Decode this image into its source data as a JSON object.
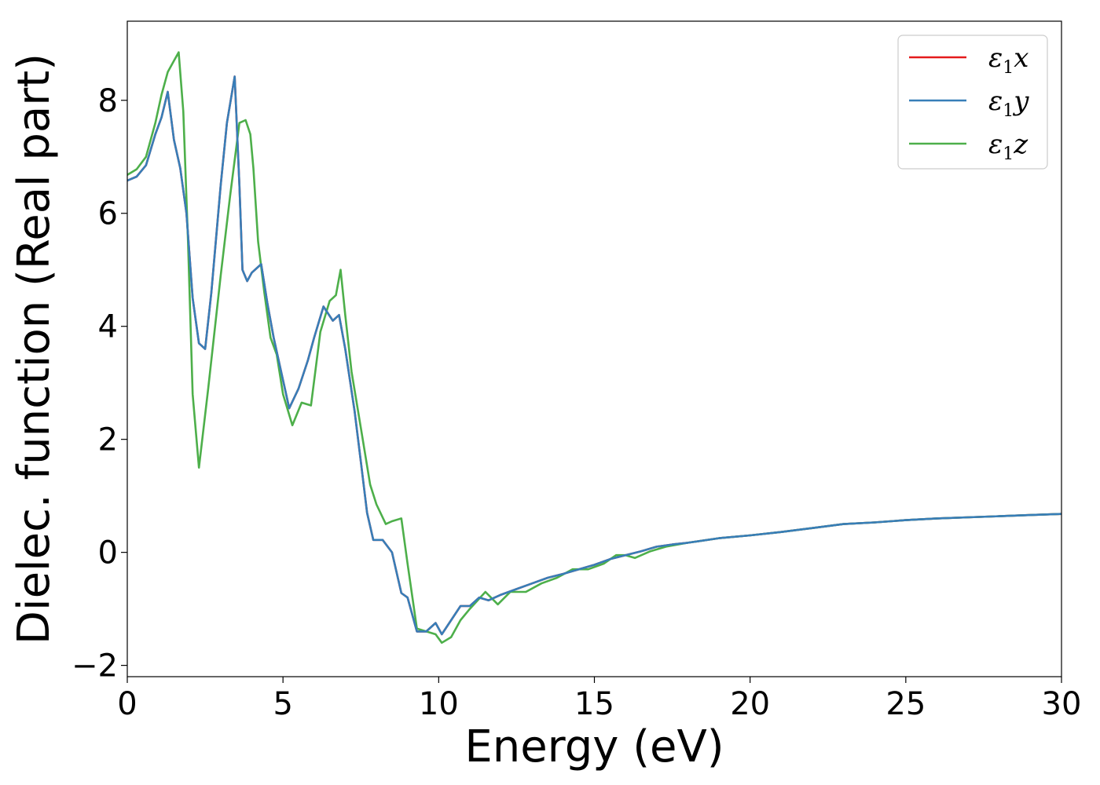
{
  "chart_data": {
    "type": "line",
    "title": "",
    "xlabel": "Energy (eV)",
    "ylabel": "Dielec. function (Real part)",
    "xlim": [
      0,
      30
    ],
    "ylim": [
      -2.2,
      9.4
    ],
    "xticks": [
      0,
      5,
      10,
      15,
      20,
      25,
      30
    ],
    "xtick_labels": [
      "0",
      "5",
      "10",
      "15",
      "20",
      "25",
      "30"
    ],
    "yticks": [
      -2,
      0,
      2,
      4,
      6,
      8
    ],
    "ytick_labels": [
      "−2",
      "0",
      "2",
      "4",
      "6",
      "8"
    ],
    "grid": false,
    "legend_position": "top-right",
    "series": [
      {
        "name": "ε1x",
        "label_main": "ε",
        "label_sub": "1",
        "label_suffix": "x",
        "color": "#e41a1c",
        "x": [
          0,
          0.3,
          0.6,
          0.9,
          1.1,
          1.3,
          1.5,
          1.7,
          1.9,
          2.1,
          2.3,
          2.5,
          2.7,
          3.0,
          3.2,
          3.45,
          3.6,
          3.7,
          3.85,
          4.0,
          4.3,
          4.5,
          4.7,
          4.9,
          5.2,
          5.5,
          5.8,
          6.0,
          6.3,
          6.6,
          6.8,
          7.0,
          7.3,
          7.5,
          7.7,
          7.9,
          8.2,
          8.5,
          8.8,
          9.0,
          9.3,
          9.6,
          9.9,
          10.1,
          10.4,
          10.7,
          11.0,
          11.3,
          11.6,
          12.0,
          12.5,
          13.0,
          13.5,
          14.0,
          14.5,
          15.0,
          15.5,
          16.0,
          16.5,
          17.0,
          17.5,
          18.0,
          19.0,
          20.0,
          21.0,
          22.0,
          23.0,
          24.0,
          25.0,
          26.0,
          27.0,
          28.0,
          29.0,
          30.0
        ],
        "y": [
          6.58,
          6.65,
          6.85,
          7.4,
          7.7,
          8.15,
          7.3,
          6.8,
          6.0,
          4.5,
          3.7,
          3.6,
          4.6,
          6.5,
          7.6,
          8.42,
          6.5,
          5.0,
          4.8,
          4.95,
          5.1,
          4.4,
          3.8,
          3.3,
          2.55,
          2.9,
          3.4,
          3.8,
          4.35,
          4.1,
          4.2,
          3.6,
          2.5,
          1.6,
          0.7,
          0.22,
          0.22,
          0.0,
          -0.72,
          -0.8,
          -1.4,
          -1.4,
          -1.25,
          -1.45,
          -1.2,
          -0.95,
          -0.95,
          -0.8,
          -0.85,
          -0.75,
          -0.65,
          -0.55,
          -0.45,
          -0.38,
          -0.3,
          -0.22,
          -0.12,
          -0.05,
          0.02,
          0.1,
          0.14,
          0.17,
          0.25,
          0.3,
          0.36,
          0.43,
          0.5,
          0.53,
          0.57,
          0.6,
          0.62,
          0.64,
          0.66,
          0.68
        ]
      },
      {
        "name": "ε1y",
        "label_main": "ε",
        "label_sub": "1",
        "label_suffix": "y",
        "color": "#377eb8",
        "x": [
          0,
          0.3,
          0.6,
          0.9,
          1.1,
          1.3,
          1.5,
          1.7,
          1.9,
          2.1,
          2.3,
          2.5,
          2.7,
          3.0,
          3.2,
          3.45,
          3.6,
          3.7,
          3.85,
          4.0,
          4.3,
          4.5,
          4.7,
          4.9,
          5.2,
          5.5,
          5.8,
          6.0,
          6.3,
          6.6,
          6.8,
          7.0,
          7.3,
          7.5,
          7.7,
          7.9,
          8.2,
          8.5,
          8.8,
          9.0,
          9.3,
          9.6,
          9.9,
          10.1,
          10.4,
          10.7,
          11.0,
          11.3,
          11.6,
          12.0,
          12.5,
          13.0,
          13.5,
          14.0,
          14.5,
          15.0,
          15.5,
          16.0,
          16.5,
          17.0,
          17.5,
          18.0,
          19.0,
          20.0,
          21.0,
          22.0,
          23.0,
          24.0,
          25.0,
          26.0,
          27.0,
          28.0,
          29.0,
          30.0
        ],
        "y": [
          6.58,
          6.65,
          6.85,
          7.4,
          7.7,
          8.15,
          7.3,
          6.8,
          6.0,
          4.5,
          3.7,
          3.6,
          4.6,
          6.5,
          7.6,
          8.42,
          6.5,
          5.0,
          4.8,
          4.95,
          5.1,
          4.4,
          3.8,
          3.3,
          2.55,
          2.9,
          3.4,
          3.8,
          4.35,
          4.1,
          4.2,
          3.6,
          2.5,
          1.6,
          0.7,
          0.22,
          0.22,
          0.0,
          -0.72,
          -0.8,
          -1.4,
          -1.4,
          -1.25,
          -1.45,
          -1.2,
          -0.95,
          -0.95,
          -0.8,
          -0.85,
          -0.75,
          -0.65,
          -0.55,
          -0.45,
          -0.38,
          -0.3,
          -0.22,
          -0.12,
          -0.05,
          0.02,
          0.1,
          0.14,
          0.17,
          0.25,
          0.3,
          0.36,
          0.43,
          0.5,
          0.53,
          0.57,
          0.6,
          0.62,
          0.64,
          0.66,
          0.68
        ]
      },
      {
        "name": "ε1z",
        "label_main": "ε",
        "label_sub": "1",
        "label_suffix": "z",
        "color": "#4daf4a",
        "x": [
          0,
          0.3,
          0.6,
          0.9,
          1.1,
          1.3,
          1.5,
          1.65,
          1.8,
          1.95,
          2.1,
          2.3,
          2.6,
          3.0,
          3.3,
          3.6,
          3.8,
          3.95,
          4.05,
          4.2,
          4.4,
          4.6,
          4.8,
          5.0,
          5.3,
          5.6,
          5.9,
          6.2,
          6.5,
          6.7,
          6.85,
          7.0,
          7.2,
          7.5,
          7.8,
          8.0,
          8.3,
          8.5,
          8.8,
          9.0,
          9.3,
          9.6,
          9.9,
          10.1,
          10.4,
          10.7,
          11.0,
          11.5,
          11.9,
          12.3,
          12.8,
          13.3,
          13.8,
          14.3,
          14.8,
          15.3,
          15.7,
          16.0,
          16.3,
          16.8,
          17.3,
          18.0,
          19.0,
          20.0,
          21.0,
          22.0,
          23.0,
          24.0,
          25.0,
          26.0,
          27.0,
          28.0,
          29.0,
          30.0
        ],
        "y": [
          6.68,
          6.78,
          7.0,
          7.6,
          8.1,
          8.5,
          8.7,
          8.85,
          7.8,
          5.5,
          2.8,
          1.5,
          2.9,
          4.9,
          6.3,
          7.6,
          7.65,
          7.4,
          6.8,
          5.5,
          4.6,
          3.8,
          3.5,
          2.8,
          2.25,
          2.65,
          2.6,
          3.9,
          4.45,
          4.55,
          5.0,
          4.2,
          3.2,
          2.2,
          1.2,
          0.85,
          0.5,
          0.55,
          0.6,
          -0.2,
          -1.35,
          -1.4,
          -1.45,
          -1.6,
          -1.5,
          -1.2,
          -1.0,
          -0.7,
          -0.92,
          -0.7,
          -0.7,
          -0.55,
          -0.45,
          -0.3,
          -0.3,
          -0.2,
          -0.05,
          -0.05,
          -0.1,
          0.02,
          0.1,
          0.17,
          0.25,
          0.3,
          0.36,
          0.43,
          0.5,
          0.53,
          0.57,
          0.6,
          0.62,
          0.64,
          0.66,
          0.68
        ]
      }
    ]
  }
}
